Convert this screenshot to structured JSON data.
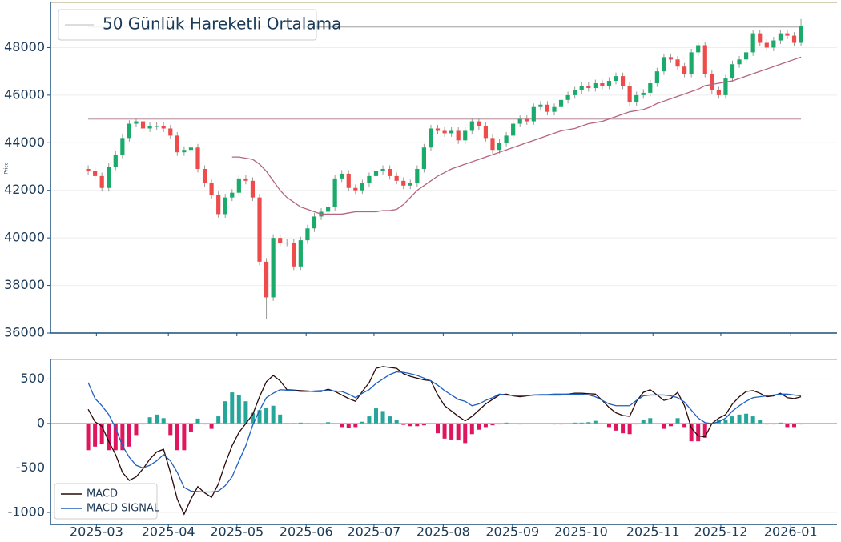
{
  "chart_data": [
    {
      "type": "candlestick",
      "ylabel": "Price",
      "open": [
        42900,
        42800,
        42600,
        42100,
        43000,
        43500,
        44200,
        44800,
        44900,
        44600,
        44700,
        44700,
        44600,
        44300,
        43600,
        43700,
        43800,
        42900,
        42300,
        41800,
        41000,
        41700,
        41900,
        42500,
        42400,
        41700,
        39000,
        37500,
        40000,
        39800,
        39800,
        38800,
        39900,
        40400,
        40900,
        41100,
        41300,
        42500,
        42700,
        42100,
        42000,
        42300,
        42600,
        42800,
        42900,
        42600,
        42400,
        42200,
        42300,
        42900,
        43800,
        44600,
        44500,
        44400,
        44500,
        44100,
        44500,
        44900,
        44700,
        44200,
        43700,
        44000,
        44300,
        44800,
        45000,
        44900,
        45500,
        45600,
        45300,
        45500,
        45800,
        46000,
        46200,
        46400,
        46300,
        46500,
        46400,
        46600,
        46800,
        46400,
        45700,
        46000,
        46100,
        46500,
        47000,
        47600,
        47500,
        47200,
        46900,
        47800,
        48100,
        46900,
        46200,
        46000,
        46700,
        47300,
        47500,
        47800,
        48600,
        48200,
        48000,
        48300,
        48600,
        48500,
        48200
      ],
      "high": [
        43050,
        42950,
        42750,
        43150,
        43650,
        44350,
        44950,
        45050,
        45050,
        44850,
        44850,
        44850,
        44750,
        44450,
        43850,
        43950,
        43950,
        43050,
        42450,
        41950,
        41850,
        42050,
        42650,
        42650,
        42550,
        41850,
        39150,
        40150,
        40150,
        39950,
        39950,
        40050,
        40550,
        41050,
        41250,
        41450,
        42650,
        42850,
        42850,
        42250,
        42450,
        42750,
        42950,
        43050,
        43050,
        42750,
        42550,
        42450,
        43050,
        43950,
        44750,
        44750,
        44650,
        44650,
        44650,
        44650,
        45050,
        45050,
        44850,
        44350,
        44150,
        44450,
        44950,
        45150,
        45150,
        45650,
        45750,
        45750,
        45650,
        45950,
        46150,
        46350,
        46550,
        46550,
        46650,
        46650,
        46750,
        46950,
        46950,
        46550,
        46150,
        46250,
        46650,
        47150,
        47750,
        47750,
        47650,
        47350,
        47950,
        48250,
        48250,
        47050,
        46350,
        46850,
        47450,
        47650,
        47950,
        48750,
        48750,
        48350,
        48450,
        48750,
        48750,
        48650,
        49200
      ],
      "low": [
        42650,
        42450,
        41950,
        41950,
        42850,
        43350,
        44050,
        44650,
        44450,
        44450,
        44550,
        44450,
        44150,
        43450,
        43450,
        43550,
        42750,
        42150,
        41650,
        40850,
        40850,
        41550,
        41750,
        42250,
        41550,
        38850,
        36600,
        37350,
        39650,
        39650,
        38650,
        38650,
        39750,
        40250,
        40750,
        40950,
        41150,
        42350,
        41950,
        41850,
        41850,
        42150,
        42450,
        42650,
        42450,
        42250,
        42050,
        42050,
        42150,
        42750,
        43650,
        44350,
        44250,
        44250,
        43950,
        43950,
        44350,
        44550,
        44050,
        43550,
        43550,
        43850,
        44150,
        44650,
        44750,
        44750,
        45350,
        45150,
        45150,
        45350,
        45650,
        45850,
        46050,
        46150,
        46150,
        46250,
        46250,
        46450,
        46250,
        45550,
        45550,
        45850,
        45950,
        46350,
        46850,
        47350,
        47050,
        46750,
        46750,
        47650,
        46750,
        46050,
        45850,
        45850,
        46550,
        47150,
        47350,
        47650,
        48050,
        47850,
        47850,
        48150,
        48350,
        48050,
        48050
      ],
      "close": [
        42800,
        42600,
        42100,
        43000,
        43500,
        44200,
        44800,
        44900,
        44600,
        44700,
        44700,
        44600,
        44300,
        43600,
        43700,
        43800,
        42900,
        42300,
        41800,
        41000,
        41700,
        41900,
        42500,
        42400,
        41700,
        39000,
        37500,
        40000,
        39800,
        39800,
        38800,
        39900,
        40400,
        40900,
        41100,
        41300,
        42500,
        42700,
        42100,
        42000,
        42300,
        42600,
        42800,
        42900,
        42600,
        42400,
        42200,
        42300,
        42900,
        43800,
        44600,
        44500,
        44400,
        44500,
        44100,
        44500,
        44900,
        44700,
        44200,
        43700,
        44000,
        44300,
        44800,
        45000,
        44900,
        45500,
        45600,
        45300,
        45500,
        45800,
        46000,
        46200,
        46400,
        46300,
        46500,
        46400,
        46600,
        46800,
        46400,
        45700,
        46000,
        46100,
        46500,
        47000,
        47600,
        47500,
        47200,
        46900,
        47800,
        48100,
        46900,
        46200,
        46000,
        46700,
        47300,
        47500,
        47800,
        48600,
        48200,
        48000,
        48300,
        48600,
        48500,
        48200,
        48900
      ],
      "up_color": "#1aaa6a",
      "down_color": "#ef4b4b",
      "wick_color": "#999999",
      "series": [
        {
          "name": "50 Günlük Hareketli Ortalama",
          "color": "#b5657e",
          "values": [
            null,
            null,
            null,
            null,
            null,
            null,
            null,
            null,
            null,
            null,
            null,
            null,
            null,
            null,
            null,
            null,
            null,
            null,
            null,
            null,
            null,
            43400,
            43400,
            43350,
            43300,
            43100,
            42800,
            42400,
            42000,
            41700,
            41500,
            41300,
            41200,
            41100,
            41000,
            41000,
            41000,
            41000,
            41050,
            41100,
            41100,
            41100,
            41100,
            41150,
            41150,
            41200,
            41400,
            41700,
            42000,
            42200,
            42400,
            42600,
            42750,
            42900,
            43000,
            43100,
            43200,
            43300,
            43400,
            43500,
            43600,
            43700,
            43800,
            43900,
            44000,
            44100,
            44200,
            44300,
            44400,
            44500,
            44550,
            44600,
            44700,
            44800,
            44850,
            44900,
            45000,
            45100,
            45200,
            45300,
            45350,
            45400,
            45500,
            45650,
            45750,
            45850,
            45950,
            46050,
            46150,
            46250,
            46400,
            46450,
            46500,
            46550,
            46600,
            46700,
            46800,
            46900,
            47000,
            47100,
            47200,
            47300,
            47400,
            47500,
            47600
          ]
        }
      ],
      "hlines": [
        {
          "value": 45000,
          "color": "#c9a9b3"
        },
        {
          "value": 48870,
          "color": "#b8b8b8"
        }
      ],
      "legend": "upper left",
      "xlim": [
        -5.5,
        109.25
      ],
      "ylim": [
        36000,
        49900
      ],
      "yticks": [
        36000,
        38000,
        40000,
        42000,
        44000,
        46000,
        48000
      ],
      "grid": true
    },
    {
      "type": "macd",
      "series": [
        {
          "name": "MACD",
          "color": "#2a0808",
          "values": [
            160,
            20,
            -30,
            -200,
            -350,
            -550,
            -640,
            -600,
            -510,
            -400,
            -320,
            -290,
            -550,
            -850,
            -1020,
            -850,
            -710,
            -780,
            -830,
            -680,
            -450,
            -250,
            -100,
            0,
            100,
            300,
            470,
            540,
            480,
            380,
            375,
            370,
            365,
            360,
            360,
            385,
            360,
            320,
            280,
            250,
            360,
            460,
            620,
            640,
            630,
            620,
            560,
            530,
            510,
            490,
            480,
            320,
            200,
            140,
            80,
            30,
            80,
            150,
            220,
            270,
            320,
            330,
            310,
            300,
            310,
            320,
            320,
            320,
            320,
            320,
            330,
            340,
            340,
            335,
            330,
            260,
            180,
            120,
            90,
            80,
            250,
            350,
            380,
            320,
            260,
            280,
            350,
            200,
            -50,
            -140,
            -150,
            0,
            60,
            100,
            220,
            300,
            360,
            370,
            340,
            300,
            310,
            340,
            290,
            280,
            300
          ]
        },
        {
          "name": "MACD SIGNAL",
          "color": "#1f5fbf",
          "values": [
            460,
            280,
            200,
            100,
            -50,
            -250,
            -380,
            -470,
            -500,
            -470,
            -420,
            -350,
            -420,
            -550,
            -720,
            -760,
            -765,
            -770,
            -770,
            -760,
            -700,
            -600,
            -420,
            -250,
            -20,
            150,
            290,
            340,
            380,
            375,
            370,
            360,
            360,
            365,
            370,
            370,
            365,
            360,
            330,
            290,
            340,
            380,
            450,
            500,
            550,
            580,
            575,
            560,
            540,
            510,
            480,
            430,
            370,
            320,
            270,
            250,
            200,
            220,
            260,
            290,
            330,
            320,
            315,
            310,
            315,
            320,
            325,
            325,
            330,
            330,
            330,
            330,
            330,
            320,
            300,
            260,
            220,
            200,
            200,
            200,
            260,
            310,
            320,
            320,
            320,
            310,
            290,
            240,
            150,
            60,
            10,
            0,
            20,
            60,
            140,
            200,
            250,
            290,
            300,
            310,
            320,
            330,
            330,
            320,
            310
          ]
        }
      ],
      "histogram": {
        "pos_color": "#26a69a",
        "neg_color": "#e0155f",
        "values": [
          -300,
          -260,
          -230,
          -300,
          -300,
          -300,
          -260,
          -130,
          -10,
          70,
          100,
          60,
          -130,
          -300,
          -300,
          -90,
          55,
          -10,
          -60,
          80,
          250,
          350,
          320,
          250,
          120,
          150,
          180,
          200,
          100,
          5,
          5,
          10,
          5,
          -5,
          -10,
          15,
          -5,
          -40,
          -50,
          -40,
          20,
          80,
          170,
          140,
          80,
          40,
          -15,
          -30,
          -30,
          -20,
          0,
          -110,
          -170,
          -180,
          -190,
          -220,
          -120,
          -70,
          -40,
          -20,
          -10,
          10,
          -5,
          -10,
          -5,
          0,
          -5,
          -5,
          -10,
          -10,
          0,
          10,
          10,
          15,
          30,
          0,
          -40,
          -80,
          -110,
          -120,
          -10,
          40,
          60,
          0,
          -60,
          -30,
          60,
          -40,
          -200,
          -200,
          -160,
          0,
          40,
          40,
          80,
          100,
          110,
          80,
          40,
          -10,
          -10,
          10,
          -40,
          -40,
          -10
        ]
      },
      "legend": "lower left",
      "xlim": [
        -5.5,
        109.25
      ],
      "xticks": [
        {
          "value": 1.2,
          "label": "2025-03"
        },
        {
          "value": 11.7,
          "label": "2025-04"
        },
        {
          "value": 21.7,
          "label": "2025-05"
        },
        {
          "value": 31.8,
          "label": "2025-06"
        },
        {
          "value": 41.7,
          "label": "2025-07"
        },
        {
          "value": 51.8,
          "label": "2025-08"
        },
        {
          "value": 61.9,
          "label": "2025-09"
        },
        {
          "value": 71.9,
          "label": "2025-10"
        },
        {
          "value": 82.4,
          "label": "2025-11"
        },
        {
          "value": 92.3,
          "label": "2025-12"
        },
        {
          "value": 102.5,
          "label": "2026-01"
        }
      ],
      "ylim": [
        -1135,
        720
      ],
      "yticks": [
        -1000,
        -500,
        0,
        500
      ],
      "grid": true
    }
  ]
}
